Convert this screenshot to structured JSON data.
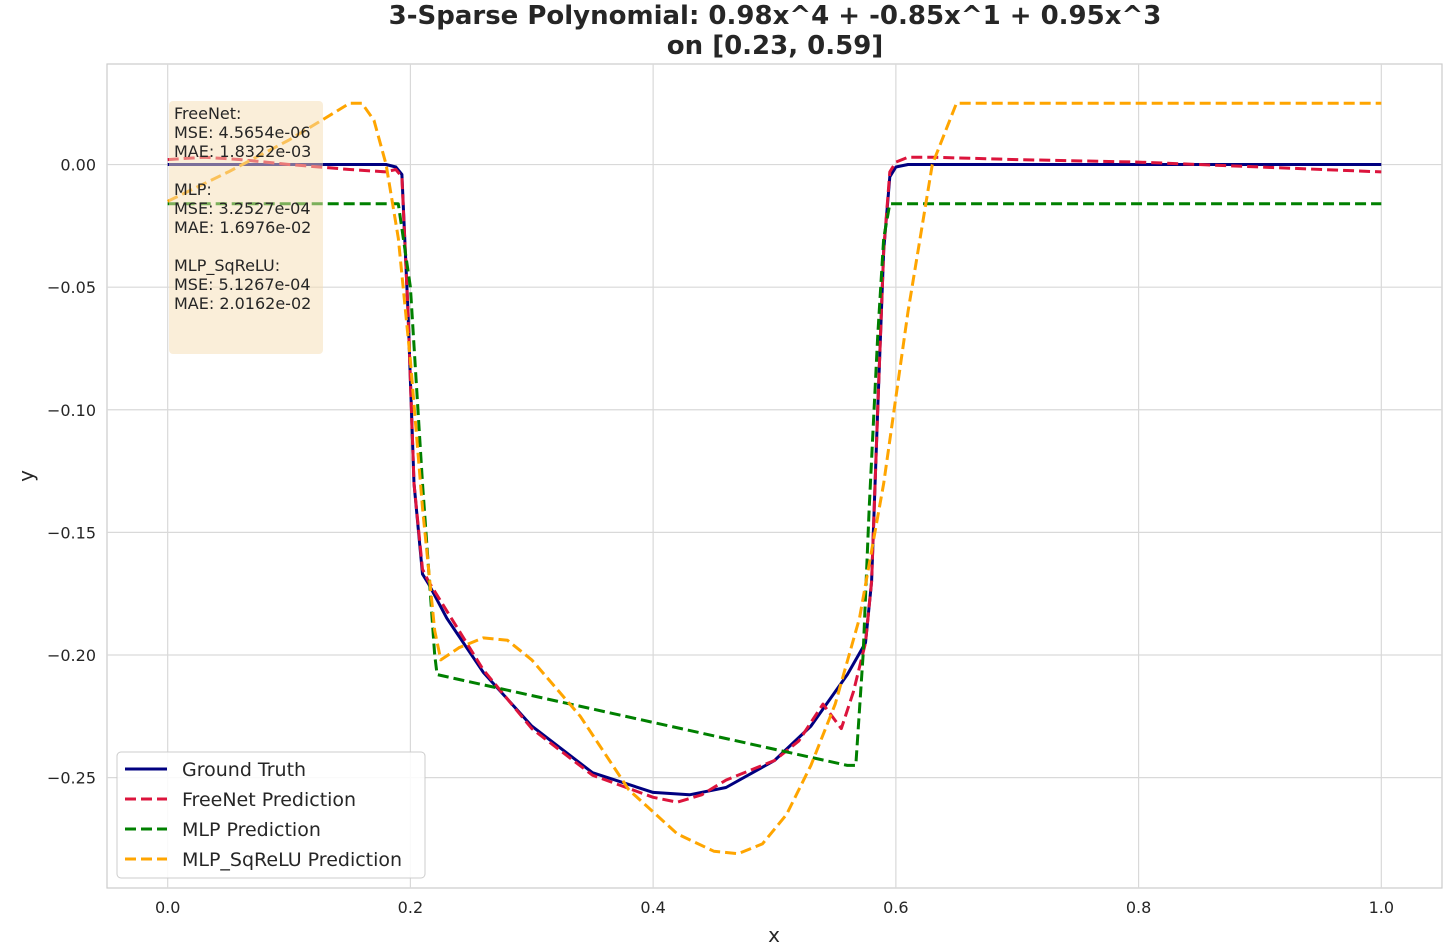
{
  "chart_data": {
    "type": "line",
    "title_line1": "3-Sparse Polynomial: 0.98x^4 + -0.85x^1 + 0.95x^3",
    "title_line2": "on [0.23, 0.59]",
    "xlabel": "x",
    "ylabel": "y",
    "xlim": [
      -0.05,
      1.05
    ],
    "ylim": [
      -0.295,
      0.041
    ],
    "grid": true,
    "legend_position": "lower-left",
    "x_ticks": [
      {
        "value": 0.0,
        "label": "0.0"
      },
      {
        "value": 0.2,
        "label": "0.2"
      },
      {
        "value": 0.4,
        "label": "0.4"
      },
      {
        "value": 0.6,
        "label": "0.6"
      },
      {
        "value": 0.8,
        "label": "0.8"
      },
      {
        "value": 1.0,
        "label": "1.0"
      }
    ],
    "y_ticks": [
      {
        "value": 0.0,
        "label": "0.00"
      },
      {
        "value": -0.05,
        "label": "−0.05"
      },
      {
        "value": -0.1,
        "label": "−0.10"
      },
      {
        "value": -0.15,
        "label": "−0.15"
      },
      {
        "value": -0.2,
        "label": "−0.20"
      },
      {
        "value": -0.25,
        "label": "−0.25"
      }
    ],
    "metrics_box": {
      "background": "#f5deb3",
      "lines": [
        "FreeNet:",
        "MSE: 4.5654e-06",
        "MAE: 1.8322e-03",
        "",
        "MLP:",
        "MSE: 3.2527e-04",
        "MAE: 1.6976e-02",
        "",
        "MLP_SqReLU:",
        "MSE: 5.1267e-04",
        "MAE: 2.0162e-02"
      ]
    },
    "series": [
      {
        "name": "Ground Truth",
        "color": "#000080",
        "dash": "solid",
        "x": [
          0.0,
          0.18,
          0.188,
          0.193,
          0.198,
          0.203,
          0.21,
          0.215,
          0.23,
          0.26,
          0.3,
          0.35,
          0.4,
          0.43,
          0.46,
          0.5,
          0.53,
          0.56,
          0.575,
          0.58,
          0.585,
          0.59,
          0.595,
          0.6,
          0.61,
          0.7,
          0.8,
          0.9,
          1.0
        ],
        "y": [
          0.0,
          0.0,
          -0.001,
          -0.004,
          -0.06,
          -0.13,
          -0.167,
          -0.171,
          -0.185,
          -0.207,
          -0.229,
          -0.248,
          -0.256,
          -0.257,
          -0.254,
          -0.243,
          -0.229,
          -0.208,
          -0.195,
          -0.17,
          -0.1,
          -0.035,
          -0.005,
          -0.001,
          0.0,
          0.0,
          0.0,
          0.0,
          0.0
        ]
      },
      {
        "name": "FreeNet Prediction",
        "color": "#dc143c",
        "dash": "dashed",
        "x": [
          0.0,
          0.03,
          0.06,
          0.1,
          0.15,
          0.18,
          0.188,
          0.193,
          0.198,
          0.203,
          0.21,
          0.215,
          0.23,
          0.26,
          0.3,
          0.35,
          0.4,
          0.42,
          0.44,
          0.46,
          0.5,
          0.52,
          0.54,
          0.555,
          0.565,
          0.575,
          0.58,
          0.585,
          0.59,
          0.595,
          0.6,
          0.61,
          0.63,
          0.7,
          0.8,
          0.9,
          1.0
        ],
        "y": [
          0.002,
          0.003,
          0.002,
          0.0,
          -0.002,
          -0.003,
          -0.002,
          -0.005,
          -0.06,
          -0.13,
          -0.165,
          -0.17,
          -0.182,
          -0.206,
          -0.23,
          -0.249,
          -0.258,
          -0.26,
          -0.257,
          -0.251,
          -0.243,
          -0.235,
          -0.22,
          -0.23,
          -0.215,
          -0.195,
          -0.17,
          -0.1,
          -0.035,
          -0.003,
          0.001,
          0.003,
          0.003,
          0.002,
          0.001,
          -0.001,
          -0.003
        ]
      },
      {
        "name": "MLP Prediction",
        "color": "#008000",
        "dash": "dashed",
        "x": [
          0.0,
          0.19,
          0.2,
          0.21,
          0.22,
          0.222,
          0.56,
          0.567,
          0.573,
          0.578,
          0.585,
          0.59,
          0.595,
          0.6,
          1.0
        ],
        "y": [
          -0.016,
          -0.016,
          -0.05,
          -0.13,
          -0.2,
          -0.208,
          -0.245,
          -0.245,
          -0.2,
          -0.14,
          -0.07,
          -0.03,
          -0.016,
          -0.016,
          -0.016
        ]
      },
      {
        "name": "MLP_SqReLU Prediction",
        "color": "#ffa500",
        "dash": "dashed",
        "x": [
          0.0,
          0.05,
          0.1,
          0.13,
          0.15,
          0.16,
          0.17,
          0.18,
          0.19,
          0.2,
          0.21,
          0.22,
          0.225,
          0.24,
          0.26,
          0.28,
          0.3,
          0.34,
          0.38,
          0.42,
          0.45,
          0.47,
          0.49,
          0.51,
          0.53,
          0.55,
          0.57,
          0.59,
          0.61,
          0.63,
          0.65,
          1.0
        ],
        "y": [
          -0.015,
          -0.003,
          0.01,
          0.019,
          0.025,
          0.025,
          0.018,
          0.0,
          -0.03,
          -0.08,
          -0.14,
          -0.19,
          -0.202,
          -0.197,
          -0.193,
          -0.194,
          -0.202,
          -0.225,
          -0.255,
          -0.273,
          -0.28,
          -0.281,
          -0.277,
          -0.265,
          -0.245,
          -0.22,
          -0.185,
          -0.13,
          -0.06,
          0.0,
          0.025,
          0.025
        ]
      }
    ]
  }
}
